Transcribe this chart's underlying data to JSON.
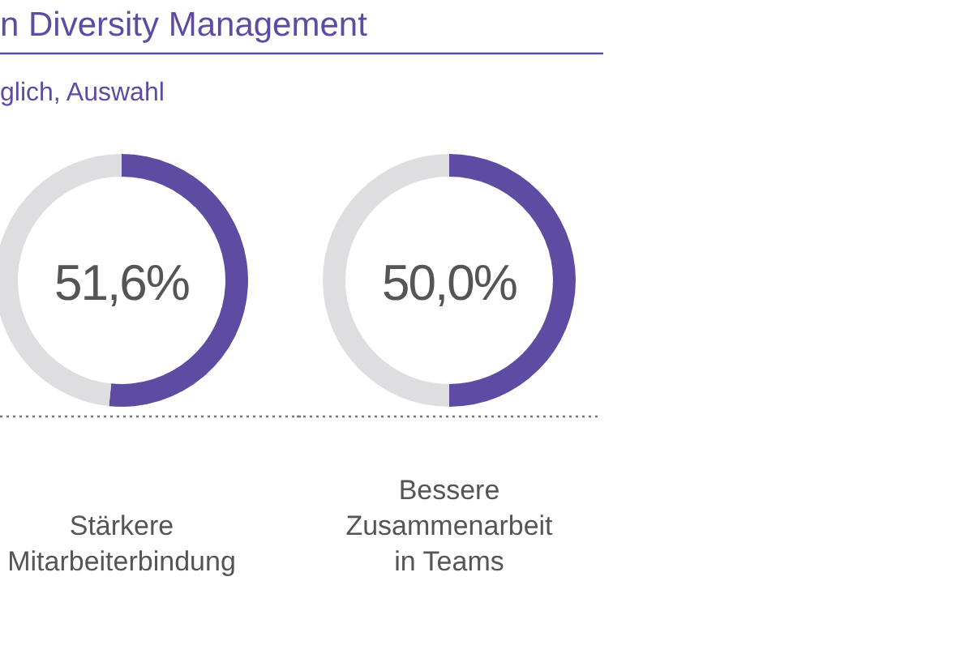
{
  "chart_data": [
    {
      "type": "donut",
      "title": "n Diversity Management",
      "subtitle": "glich, Auswahl",
      "categories": [
        null,
        null
      ],
      "values": [
        51.6,
        48.4
      ],
      "colors": [
        "#5e4ca3",
        "#dedde0"
      ],
      "value_labels": [
        "51,6%",
        null
      ],
      "xlabel": "Stärkere\nMitarbeiterbindung"
    },
    {
      "type": "donut",
      "categories": [
        null,
        null
      ],
      "values": [
        50.0,
        50.0
      ],
      "colors": [
        "#5e4ca3",
        "#dedde0"
      ],
      "value_labels": [
        "50,0%",
        null
      ],
      "xlabel": "Bessere\nZusammenarbeit\nin Teams"
    }
  ]
}
